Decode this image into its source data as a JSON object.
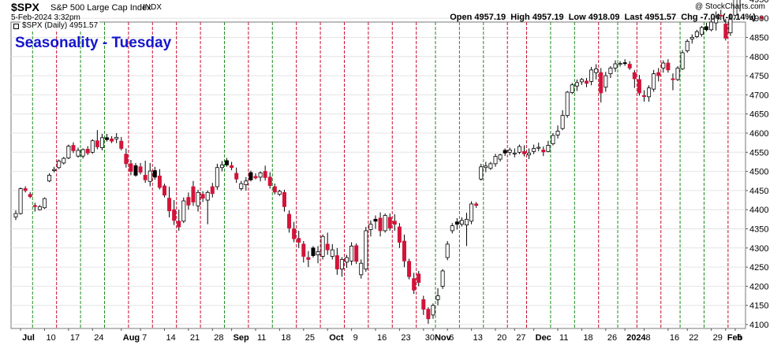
{
  "header": {
    "symbol": "$SPX",
    "description": "S&P 500 Large Cap Index",
    "exchange": "INDX",
    "watermark": "@ StockCharts.com",
    "date": "5-Feb-2024 3:32pm",
    "open_label": "Open",
    "open": "4957.19",
    "high_label": "High",
    "high": "4957.19",
    "low_label": "Low",
    "low": "4918.09",
    "last_label": "Last",
    "last": "4951.57",
    "chg_label": "Chg",
    "chg": "-7.04 (-0.14%)",
    "series_tag": "$SPX (Daily) 4951.57",
    "title": "Seasonality - Tuesday"
  },
  "colors": {
    "up_candle": "#ffffff",
    "down_candle": "#d2143a",
    "black_candle": "#000000",
    "today_candle": "#f2e600",
    "red_line": "#c8102e",
    "green_line": "#1e8c1e",
    "title": "#1515cc"
  },
  "chart_data": {
    "type": "candlestick",
    "title": "Seasonality - Tuesday",
    "xlabel": "",
    "ylabel": "",
    "ylim": [
      4090,
      4975
    ],
    "yticks": [
      4100,
      4150,
      4200,
      4250,
      4300,
      4350,
      4400,
      4450,
      4500,
      4550,
      4600,
      4650,
      4700,
      4750,
      4800,
      4850,
      4900,
      4950
    ],
    "xtick_labels": [
      {
        "label": "Jul",
        "i": 1
      },
      {
        "label": "10",
        "i": 6
      },
      {
        "label": "17",
        "i": 11
      },
      {
        "label": "24",
        "i": 16
      },
      {
        "label": "Aug",
        "i": 22
      },
      {
        "label": "7",
        "i": 26
      },
      {
        "label": "14",
        "i": 31
      },
      {
        "label": "21",
        "i": 36
      },
      {
        "label": "28",
        "i": 41
      },
      {
        "label": "Sep",
        "i": 45
      },
      {
        "label": "11",
        "i": 50
      },
      {
        "label": "18",
        "i": 55
      },
      {
        "label": "25",
        "i": 60
      },
      {
        "label": "Oct",
        "i": 65
      },
      {
        "label": "9",
        "i": 70
      },
      {
        "label": "16",
        "i": 75
      },
      {
        "label": "23",
        "i": 80
      },
      {
        "label": "30",
        "i": 85
      },
      {
        "label": "Nov",
        "i": 87
      },
      {
        "label": "6",
        "i": 90
      },
      {
        "label": "13",
        "i": 95
      },
      {
        "label": "20",
        "i": 100
      },
      {
        "label": "27",
        "i": 104
      },
      {
        "label": "Dec",
        "i": 108
      },
      {
        "label": "11",
        "i": 113
      },
      {
        "label": "18",
        "i": 118
      },
      {
        "label": "26",
        "i": 123
      },
      {
        "label": "2024",
        "i": 127
      },
      {
        "label": "8",
        "i": 131
      },
      {
        "label": "16",
        "i": 136
      },
      {
        "label": "22",
        "i": 140
      },
      {
        "label": "29",
        "i": 145
      },
      {
        "label": "Feb",
        "i": 148
      },
      {
        "label": "5",
        "i": 150
      }
    ],
    "tuesday_lines": [
      {
        "i": 3.5,
        "color": "green"
      },
      {
        "i": 8.5,
        "color": "red"
      },
      {
        "i": 13.5,
        "color": "green"
      },
      {
        "i": 18.5,
        "color": "green"
      },
      {
        "i": 23.5,
        "color": "red"
      },
      {
        "i": 28.5,
        "color": "red"
      },
      {
        "i": 33.5,
        "color": "red"
      },
      {
        "i": 38.5,
        "color": "red"
      },
      {
        "i": 43.5,
        "color": "green"
      },
      {
        "i": 48.5,
        "color": "red"
      },
      {
        "i": 53.5,
        "color": "green"
      },
      {
        "i": 58.5,
        "color": "red"
      },
      {
        "i": 63.5,
        "color": "red"
      },
      {
        "i": 68.5,
        "color": "red"
      },
      {
        "i": 73.5,
        "color": "red"
      },
      {
        "i": 78.5,
        "color": "red"
      },
      {
        "i": 83.5,
        "color": "red"
      },
      {
        "i": 87.5,
        "color": "green"
      },
      {
        "i": 92.5,
        "color": "green"
      },
      {
        "i": 97.5,
        "color": "green"
      },
      {
        "i": 102.5,
        "color": "red"
      },
      {
        "i": 106.5,
        "color": "red"
      },
      {
        "i": 111.5,
        "color": "green"
      },
      {
        "i": 116.5,
        "color": "green"
      },
      {
        "i": 121.5,
        "color": "red"
      },
      {
        "i": 125.5,
        "color": "green"
      },
      {
        "i": 129.5,
        "color": "red"
      },
      {
        "i": 134.5,
        "color": "red"
      },
      {
        "i": 138.5,
        "color": "green"
      },
      {
        "i": 143.5,
        "color": "green"
      },
      {
        "i": 148.5,
        "color": "red"
      }
    ],
    "candles": [
      [
        4381,
        4398,
        4373,
        4390,
        "up"
      ],
      [
        4390,
        4458,
        4387,
        4455,
        "up"
      ],
      [
        4455,
        4461,
        4445,
        4450,
        "down"
      ],
      [
        4440,
        4446,
        4430,
        4434,
        "down"
      ],
      [
        4411,
        4418,
        4395,
        4408,
        "down"
      ],
      [
        4408,
        4412,
        4398,
        4400,
        "up"
      ],
      [
        4405,
        4432,
        4402,
        4429,
        "up"
      ],
      [
        4475,
        4495,
        4472,
        4490,
        "up"
      ],
      [
        4505,
        4512,
        4497,
        4502,
        "up"
      ],
      [
        4510,
        4531,
        4506,
        4527,
        "up"
      ],
      [
        4522,
        4538,
        4518,
        4534,
        "up"
      ],
      [
        4535,
        4570,
        4532,
        4566,
        "up"
      ],
      [
        4568,
        4576,
        4548,
        4554,
        "down"
      ],
      [
        4555,
        4562,
        4536,
        4540,
        "up"
      ],
      [
        4540,
        4560,
        4534,
        4557,
        "up"
      ],
      [
        4558,
        4566,
        4543,
        4548,
        "down"
      ],
      [
        4550,
        4584,
        4546,
        4580,
        "up"
      ],
      [
        4580,
        4608,
        4558,
        4564,
        "down"
      ],
      [
        4562,
        4598,
        4555,
        4588,
        "up"
      ],
      [
        4588,
        4598,
        4578,
        4583,
        "black"
      ],
      [
        4585,
        4592,
        4574,
        4579,
        "down"
      ],
      [
        4585,
        4600,
        4574,
        4589,
        "up"
      ],
      [
        4579,
        4590,
        4555,
        4560,
        "down"
      ],
      [
        4545,
        4560,
        4510,
        4520,
        "down"
      ],
      [
        4520,
        4530,
        4490,
        4500,
        "down"
      ],
      [
        4490,
        4522,
        4486,
        4515,
        "black"
      ],
      [
        4512,
        4522,
        4492,
        4498,
        "down"
      ],
      [
        4490,
        4528,
        4470,
        4478,
        "down"
      ],
      [
        4474,
        4522,
        4461,
        4501,
        "up"
      ],
      [
        4502,
        4512,
        4478,
        4485,
        "black"
      ],
      [
        4488,
        4506,
        4453,
        4458,
        "down"
      ],
      [
        4462,
        4468,
        4432,
        4438,
        "down"
      ],
      [
        4430,
        4460,
        4380,
        4397,
        "down"
      ],
      [
        4400,
        4425,
        4360,
        4372,
        "down"
      ],
      [
        4370,
        4400,
        4345,
        4355,
        "down"
      ],
      [
        4370,
        4432,
        4365,
        4423,
        "up"
      ],
      [
        4432,
        4445,
        4400,
        4412,
        "down"
      ],
      [
        4460,
        4475,
        4410,
        4420,
        "down"
      ],
      [
        4410,
        4452,
        4395,
        4445,
        "up"
      ],
      [
        4440,
        4448,
        4420,
        4430,
        "down"
      ],
      [
        4425,
        4450,
        4362,
        4445,
        "up"
      ],
      [
        4460,
        4470,
        4432,
        4442,
        "down"
      ],
      [
        4460,
        4520,
        4452,
        4510,
        "up"
      ],
      [
        4510,
        4527,
        4500,
        4517,
        "up"
      ],
      [
        4517,
        4535,
        4512,
        4528,
        "black"
      ],
      [
        4515,
        4525,
        4503,
        4510,
        "down"
      ],
      [
        4495,
        4510,
        4470,
        4480,
        "down"
      ],
      [
        4455,
        4475,
        4450,
        4468,
        "up"
      ],
      [
        4465,
        4485,
        4450,
        4475,
        "up"
      ],
      [
        4478,
        4502,
        4474,
        4497,
        "black"
      ],
      [
        4487,
        4495,
        4479,
        4483,
        "down"
      ],
      [
        4485,
        4500,
        4474,
        4496,
        "up"
      ],
      [
        4500,
        4515,
        4476,
        4484,
        "down"
      ],
      [
        4485,
        4498,
        4455,
        4463,
        "down"
      ],
      [
        4460,
        4468,
        4440,
        4446,
        "down"
      ],
      [
        4440,
        4452,
        4436,
        4448,
        "up"
      ],
      [
        4445,
        4452,
        4395,
        4408,
        "down"
      ],
      [
        4388,
        4398,
        4340,
        4352,
        "down"
      ],
      [
        4350,
        4368,
        4315,
        4324,
        "down"
      ],
      [
        4325,
        4345,
        4300,
        4315,
        "down"
      ],
      [
        4310,
        4318,
        4262,
        4278,
        "down"
      ],
      [
        4275,
        4292,
        4250,
        4270,
        "down"
      ],
      [
        4280,
        4305,
        4275,
        4300,
        "black"
      ],
      [
        4290,
        4305,
        4260,
        4282,
        "up"
      ],
      [
        4278,
        4335,
        4270,
        4330,
        "up"
      ],
      [
        4310,
        4340,
        4282,
        4295,
        "down"
      ],
      [
        4295,
        4310,
        4270,
        4278,
        "up"
      ],
      [
        4280,
        4300,
        4230,
        4245,
        "down"
      ],
      [
        4245,
        4276,
        4225,
        4270,
        "up"
      ],
      [
        4263,
        4282,
        4248,
        4275,
        "up"
      ],
      [
        4266,
        4315,
        4255,
        4305,
        "up"
      ],
      [
        4306,
        4312,
        4258,
        4265,
        "down"
      ],
      [
        4260,
        4270,
        4220,
        4230,
        "up"
      ],
      [
        4245,
        4355,
        4238,
        4345,
        "up"
      ],
      [
        4348,
        4372,
        4330,
        4362,
        "up"
      ],
      [
        4370,
        4385,
        4350,
        4375,
        "black"
      ],
      [
        4378,
        4393,
        4330,
        4345,
        "down"
      ],
      [
        4345,
        4390,
        4340,
        4385,
        "up"
      ],
      [
        4380,
        4390,
        4345,
        4352,
        "down"
      ],
      [
        4370,
        4388,
        4345,
        4362,
        "down"
      ],
      [
        4355,
        4365,
        4300,
        4315,
        "down"
      ],
      [
        4318,
        4335,
        4250,
        4266,
        "down"
      ],
      [
        4265,
        4272,
        4218,
        4225,
        "down"
      ],
      [
        4220,
        4235,
        4180,
        4190,
        "down"
      ],
      [
        4232,
        4240,
        4200,
        4210,
        "down"
      ],
      [
        4165,
        4175,
        4125,
        4140,
        "down"
      ],
      [
        4140,
        4145,
        4102,
        4115,
        "down"
      ],
      [
        4125,
        4155,
        4115,
        4150,
        "up"
      ],
      [
        4175,
        4195,
        4150,
        4165,
        "up"
      ],
      [
        4200,
        4245,
        4193,
        4240,
        "up"
      ],
      [
        4275,
        4318,
        4268,
        4310,
        "up"
      ],
      [
        4345,
        4365,
        4338,
        4358,
        "up"
      ],
      [
        4362,
        4378,
        4348,
        4368,
        "black"
      ],
      [
        4362,
        4380,
        4356,
        4372,
        "up"
      ],
      [
        4360,
        4392,
        4305,
        4375,
        "up"
      ],
      [
        4370,
        4422,
        4362,
        4415,
        "up"
      ],
      [
        4415,
        4420,
        4405,
        4411,
        "down"
      ],
      [
        4480,
        4520,
        4476,
        4512,
        "up"
      ],
      [
        4510,
        4525,
        4498,
        4514,
        "up"
      ],
      [
        4508,
        4525,
        4504,
        4520,
        "up"
      ],
      [
        4520,
        4546,
        4512,
        4539,
        "up"
      ],
      [
        4532,
        4546,
        4526,
        4543,
        "up"
      ],
      [
        4548,
        4560,
        4540,
        4555,
        "black"
      ],
      [
        4550,
        4562,
        4542,
        4556,
        "up"
      ],
      [
        4548,
        4560,
        4537,
        4548,
        "up"
      ],
      [
        4550,
        4570,
        4545,
        4565,
        "up"
      ],
      [
        4552,
        4568,
        4539,
        4546,
        "down"
      ],
      [
        4548,
        4560,
        4532,
        4543,
        "up"
      ],
      [
        4552,
        4570,
        4545,
        4560,
        "up"
      ],
      [
        4562,
        4575,
        4553,
        4563,
        "up"
      ],
      [
        4556,
        4565,
        4540,
        4551,
        "down"
      ],
      [
        4552,
        4580,
        4550,
        4568,
        "up"
      ],
      [
        4572,
        4600,
        4568,
        4594,
        "up"
      ],
      [
        4595,
        4620,
        4586,
        4605,
        "up"
      ],
      [
        4612,
        4660,
        4608,
        4646,
        "up"
      ],
      [
        4646,
        4710,
        4640,
        4707,
        "up"
      ],
      [
        4706,
        4731,
        4702,
        4726,
        "up"
      ],
      [
        4723,
        4740,
        4710,
        4732,
        "up"
      ],
      [
        4734,
        4744,
        4726,
        4740,
        "up"
      ],
      [
        4736,
        4744,
        4720,
        4730,
        "down"
      ],
      [
        4735,
        4773,
        4725,
        4765,
        "up"
      ],
      [
        4758,
        4780,
        4740,
        4768,
        "up"
      ],
      [
        4758,
        4770,
        4680,
        4705,
        "down"
      ],
      [
        4720,
        4760,
        4708,
        4750,
        "up"
      ],
      [
        4755,
        4775,
        4744,
        4770,
        "up"
      ],
      [
        4770,
        4790,
        4760,
        4781,
        "up"
      ],
      [
        4782,
        4788,
        4774,
        4780,
        "up"
      ],
      [
        4783,
        4793,
        4776,
        4784,
        "black"
      ],
      [
        4780,
        4788,
        4765,
        4770,
        "down"
      ],
      [
        4758,
        4765,
        4718,
        4742,
        "down"
      ],
      [
        4740,
        4752,
        4698,
        4705,
        "down"
      ],
      [
        4698,
        4712,
        4682,
        4696,
        "down"
      ],
      [
        4695,
        4725,
        4682,
        4718,
        "up"
      ],
      [
        4715,
        4765,
        4708,
        4755,
        "up"
      ],
      [
        4758,
        4770,
        4735,
        4750,
        "down"
      ],
      [
        4770,
        4790,
        4758,
        4783,
        "up"
      ],
      [
        4783,
        4793,
        4758,
        4765,
        "down"
      ],
      [
        4742,
        4756,
        4712,
        4740,
        "down"
      ],
      [
        4740,
        4775,
        4736,
        4770,
        "up"
      ],
      [
        4768,
        4817,
        4765,
        4810,
        "up"
      ],
      [
        4815,
        4845,
        4810,
        4840,
        "up"
      ],
      [
        4846,
        4858,
        4834,
        4850,
        "up"
      ],
      [
        4852,
        4870,
        4848,
        4865,
        "up"
      ],
      [
        4858,
        4880,
        4852,
        4876,
        "up"
      ],
      [
        4878,
        4888,
        4866,
        4870,
        "black"
      ],
      [
        4870,
        4898,
        4866,
        4890,
        "up"
      ],
      [
        4905,
        4918,
        4868,
        4888,
        "up"
      ],
      [
        4908,
        4922,
        4895,
        4906,
        "down"
      ],
      [
        4885,
        4898,
        4842,
        4848,
        "down"
      ],
      [
        4862,
        4912,
        4854,
        4898,
        "up"
      ],
      [
        4908,
        4975,
        4900,
        4957,
        "up"
      ],
      [
        4957,
        4957,
        4918,
        4951.57,
        "today"
      ]
    ]
  }
}
